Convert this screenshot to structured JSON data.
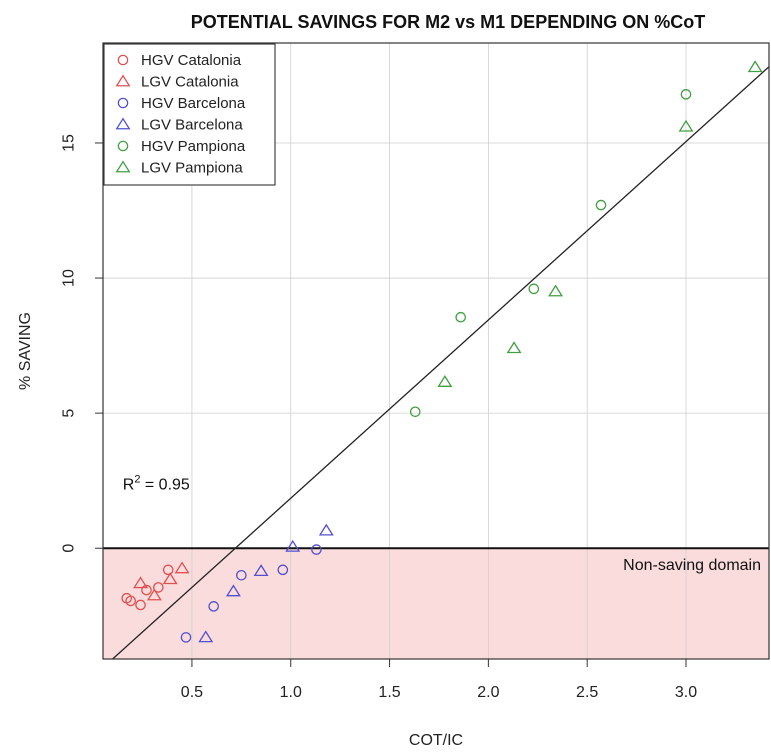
{
  "chart_data": {
    "type": "scatter",
    "title": "POTENTIAL SAVINGS FOR M2 vs M1 DEPENDING ON %CoT",
    "xlabel": "COT/IC",
    "ylabel": "% SAVING",
    "xlim": [
      0.05,
      3.42
    ],
    "ylim": [
      -4.1,
      18.7
    ],
    "xticks": [
      0.5,
      1.0,
      1.5,
      2.0,
      2.5,
      3.0
    ],
    "xtick_labels": [
      "0.5",
      "1.0",
      "1.5",
      "2.0",
      "2.5",
      "3.0"
    ],
    "yticks": [
      0,
      5,
      10,
      15
    ],
    "ytick_labels": [
      "0",
      "5",
      "10",
      "15"
    ],
    "grid": true,
    "legend_position": "top-left",
    "series": [
      {
        "name": "HGV Catalonia",
        "marker": "circle",
        "color": "#e05050",
        "points": [
          [
            0.17,
            -1.85
          ],
          [
            0.19,
            -1.95
          ],
          [
            0.24,
            -2.1
          ],
          [
            0.27,
            -1.55
          ],
          [
            0.33,
            -1.45
          ],
          [
            0.38,
            -0.8
          ]
        ]
      },
      {
        "name": "LGV Catalonia",
        "marker": "triangle",
        "color": "#e05050",
        "points": [
          [
            0.24,
            -1.3
          ],
          [
            0.31,
            -1.75
          ],
          [
            0.39,
            -1.15
          ],
          [
            0.45,
            -0.75
          ]
        ]
      },
      {
        "name": "HGV Barcelona",
        "marker": "circle",
        "color": "#5050d0",
        "points": [
          [
            0.47,
            -3.3
          ],
          [
            0.61,
            -2.15
          ],
          [
            0.75,
            -1.0
          ],
          [
            0.96,
            -0.8
          ],
          [
            1.13,
            -0.05
          ]
        ]
      },
      {
        "name": "LGV Barcelona",
        "marker": "triangle",
        "color": "#5050d0",
        "points": [
          [
            0.57,
            -3.3
          ],
          [
            0.71,
            -1.6
          ],
          [
            0.85,
            -0.85
          ],
          [
            1.01,
            0.05
          ],
          [
            1.18,
            0.65
          ]
        ]
      },
      {
        "name": "HGV Pampiona",
        "marker": "circle",
        "color": "#40a040",
        "points": [
          [
            1.63,
            5.05
          ],
          [
            1.86,
            8.55
          ],
          [
            2.23,
            9.6
          ],
          [
            2.57,
            12.7
          ],
          [
            3.0,
            16.8
          ]
        ]
      },
      {
        "name": "LGV Pampiona",
        "marker": "triangle",
        "color": "#40a040",
        "points": [
          [
            1.78,
            6.15
          ],
          [
            2.13,
            7.4
          ],
          [
            2.34,
            9.5
          ],
          [
            3.0,
            15.6
          ],
          [
            3.35,
            17.8
          ]
        ]
      }
    ],
    "regression_line": {
      "slope": 6.6,
      "intercept": -4.75
    },
    "annotations": {
      "r_squared_label": "R",
      "r_squared_exp": "2",
      "r_squared_value": " = 0.95",
      "zero_line_label": "Non-saving domain",
      "region_fill": "#fbdcdc"
    }
  }
}
